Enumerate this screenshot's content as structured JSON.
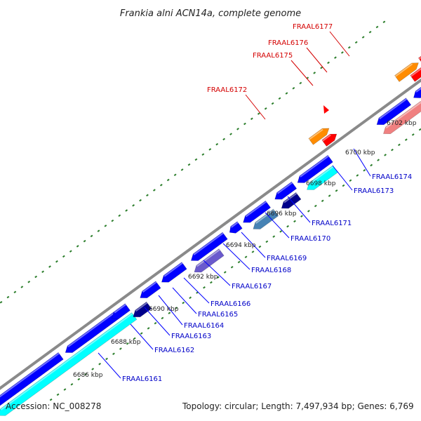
{
  "title": "Frankia alni ACN14a, complete genome",
  "footer": {
    "accession": "Accession: NC_008278",
    "summary": "Topology: circular; Length: 7,497,934 bp; Genes: 6,769"
  },
  "colors": {
    "backbone": "#8a8a8a",
    "forward_label": "#d40000",
    "reverse_label": "#0000c8",
    "tick_dots": "#2a7d2a",
    "leader_line": "#0000ff",
    "forward_leader_line": "#d40000"
  },
  "ticks": [
    {
      "label": "6686 kbp"
    },
    {
      "label": "6688 kbp"
    },
    {
      "label": "6690 kbp"
    },
    {
      "label": "6692 kbp"
    },
    {
      "label": "6694 kbp"
    },
    {
      "label": "6696 kbp"
    },
    {
      "label": "6698 kbp"
    },
    {
      "label": "6700 kbp"
    },
    {
      "label": "6702 kbp"
    }
  ],
  "forward_genes": [
    {
      "name": "FRAAL6172",
      "color": "#ff8c00"
    },
    {
      "name": "FRAAL6175",
      "color": "#ff0000"
    },
    {
      "name": "FRAAL6176",
      "color": "#ff8c00"
    },
    {
      "name": "FRAAL6177",
      "color": "#ff0000"
    }
  ],
  "reverse_genes": [
    {
      "name": "FRAAL6161",
      "color": "#00ffff"
    },
    {
      "name": "FRAAL6162",
      "color": "#0000ff"
    },
    {
      "name": "FRAAL6163",
      "color": "#0000ff"
    },
    {
      "name": "FRAAL6164",
      "color": "#00008b"
    },
    {
      "name": "FRAAL6165",
      "color": "#0000ff"
    },
    {
      "name": "FRAAL6166",
      "color": "#0000ff"
    },
    {
      "name": "FRAAL6167",
      "color": "#0000ff"
    },
    {
      "name": "FRAAL6168",
      "color": "#6a5acd"
    },
    {
      "name": "FRAAL6169",
      "color": "#4682b4"
    },
    {
      "name": "FRAAL6170",
      "color": "#00008b"
    },
    {
      "name": "FRAAL6171",
      "color": "#00ffff"
    },
    {
      "name": "FRAAL6173",
      "color": "#f08080"
    },
    {
      "name": "FRAAL6174",
      "color": "#0000ff"
    }
  ]
}
